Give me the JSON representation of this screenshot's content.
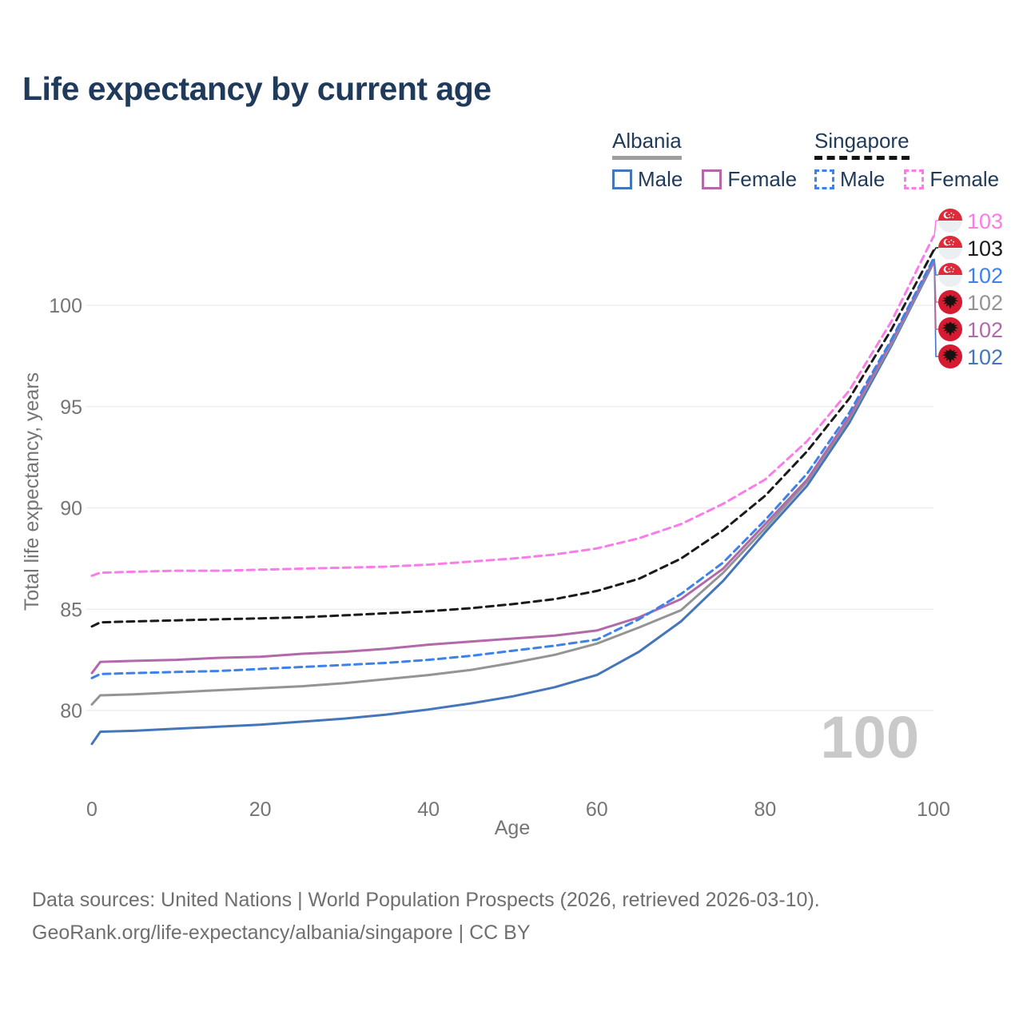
{
  "title": "Life expectancy by current age",
  "legend": {
    "groups": [
      {
        "name": "Albania",
        "line_style": "solid",
        "items": [
          {
            "label": "Male"
          },
          {
            "label": "Female"
          }
        ]
      },
      {
        "name": "Singapore",
        "line_style": "dashed",
        "items": [
          {
            "label": "Male"
          },
          {
            "label": "Female"
          }
        ]
      }
    ]
  },
  "colors": {
    "title_text": "#1f3a5a",
    "albania_male": "#4576ba",
    "albania_female": "#b269aa",
    "albania_total": "#949494",
    "singapore_male": "#3d82ea",
    "singapore_female": "#fb7ce8",
    "singapore_total": "#1a1a1a",
    "grid": "#ebebeb",
    "axis_text": "#757575",
    "watermark": "#c9c9c9"
  },
  "chart_data": {
    "type": "line",
    "title": "Life expectancy by current age",
    "xlabel": "Age",
    "ylabel": "Total life expectancy, years",
    "xlim": [
      0,
      100
    ],
    "ylim": [
      78,
      104
    ],
    "x_ticks": [
      0,
      20,
      40,
      60,
      80,
      100
    ],
    "y_ticks": [
      80,
      85,
      90,
      95,
      100
    ],
    "grid": "horizontal",
    "legend_position": "top-right",
    "watermark": "100",
    "x": [
      0,
      1,
      5,
      10,
      15,
      20,
      25,
      30,
      35,
      40,
      45,
      50,
      55,
      60,
      65,
      70,
      75,
      80,
      85,
      90,
      95,
      100
    ],
    "series": [
      {
        "name": "Albania Male",
        "country": "albania",
        "sex": "male",
        "color": "#4576ba",
        "dash": "solid",
        "end_label": "102",
        "label_row": 5,
        "values": [
          78.35,
          78.95,
          79.0,
          79.1,
          79.2,
          79.3,
          79.45,
          79.6,
          79.8,
          80.05,
          80.35,
          80.7,
          81.15,
          81.75,
          82.9,
          84.4,
          86.4,
          88.8,
          91.1,
          94.2,
          98.0,
          102.1
        ]
      },
      {
        "name": "Albania Total",
        "country": "albania",
        "sex": "total",
        "color": "#949494",
        "dash": "solid",
        "end_label": "102",
        "label_row": 3,
        "values": [
          80.3,
          80.75,
          80.8,
          80.9,
          81.0,
          81.1,
          81.2,
          81.35,
          81.55,
          81.75,
          82.0,
          82.35,
          82.75,
          83.3,
          84.1,
          84.95,
          86.8,
          89.0,
          91.3,
          94.4,
          98.1,
          102.15
        ]
      },
      {
        "name": "Albania Female",
        "country": "albania",
        "sex": "female",
        "color": "#b269aa",
        "dash": "solid",
        "end_label": "102",
        "label_row": 4,
        "values": [
          81.85,
          82.4,
          82.45,
          82.5,
          82.6,
          82.65,
          82.8,
          82.9,
          83.05,
          83.25,
          83.4,
          83.55,
          83.7,
          83.95,
          84.6,
          85.5,
          87.0,
          89.2,
          91.4,
          94.5,
          98.2,
          102.2
        ]
      },
      {
        "name": "Singapore Male",
        "country": "singapore",
        "sex": "male",
        "color": "#3d82ea",
        "dash": "dashed",
        "end_label": "102",
        "label_row": 2,
        "values": [
          81.6,
          81.8,
          81.85,
          81.9,
          81.95,
          82.05,
          82.15,
          82.25,
          82.35,
          82.5,
          82.7,
          82.95,
          83.2,
          83.5,
          84.5,
          85.75,
          87.3,
          89.4,
          91.7,
          94.7,
          98.3,
          102.3
        ]
      },
      {
        "name": "Singapore Total",
        "country": "singapore",
        "sex": "total",
        "color": "#1a1a1a",
        "dash": "dashed",
        "end_label": "103",
        "label_row": 1,
        "values": [
          84.15,
          84.35,
          84.4,
          84.45,
          84.5,
          84.55,
          84.6,
          84.7,
          84.8,
          84.9,
          85.05,
          85.25,
          85.5,
          85.9,
          86.5,
          87.5,
          88.9,
          90.6,
          92.8,
          95.4,
          98.8,
          102.7
        ]
      },
      {
        "name": "Singapore Female",
        "country": "singapore",
        "sex": "female",
        "color": "#fb7ce8",
        "dash": "dashed",
        "end_label": "103",
        "label_row": 0,
        "values": [
          86.65,
          86.8,
          86.85,
          86.9,
          86.9,
          86.95,
          87.0,
          87.05,
          87.1,
          87.2,
          87.35,
          87.5,
          87.7,
          88.0,
          88.5,
          89.2,
          90.2,
          91.4,
          93.3,
          95.8,
          99.2,
          103.4
        ]
      }
    ]
  },
  "footer": {
    "line1": "Data sources: United Nations | World Population Prospects (2026, retrieved 2026-03-10).",
    "line2": "GeoRank.org/life-expectancy/albania/singapore | CC BY"
  }
}
